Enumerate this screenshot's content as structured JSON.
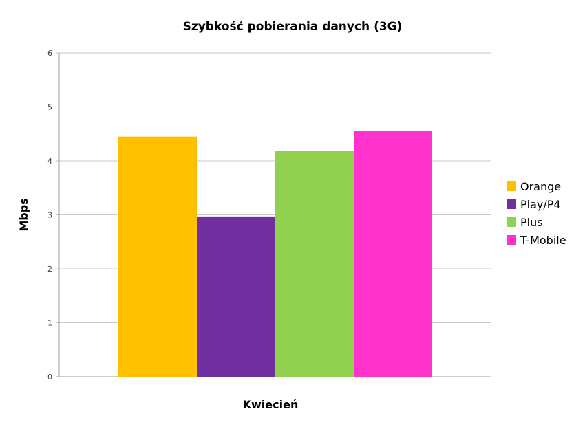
{
  "chart_data": {
    "type": "bar",
    "title": "Szybkość pobierania danych (3G)",
    "xlabel": "Kwiecień",
    "ylabel": "Mbps",
    "categories": [
      "Kwiecień"
    ],
    "series": [
      {
        "name": "Orange",
        "values": [
          4.45
        ],
        "color": "#FFC000"
      },
      {
        "name": "Play/P4",
        "values": [
          2.97
        ],
        "color": "#7030A0"
      },
      {
        "name": "Plus",
        "values": [
          4.18
        ],
        "color": "#92D050"
      },
      {
        "name": "T-Mobile",
        "values": [
          4.55
        ],
        "color": "#FF33CC"
      }
    ],
    "ylim": [
      0,
      6
    ],
    "yticks": [
      "0",
      "1",
      "2",
      "3",
      "4",
      "5",
      "6"
    ],
    "grid": true,
    "legend_position": "right"
  }
}
